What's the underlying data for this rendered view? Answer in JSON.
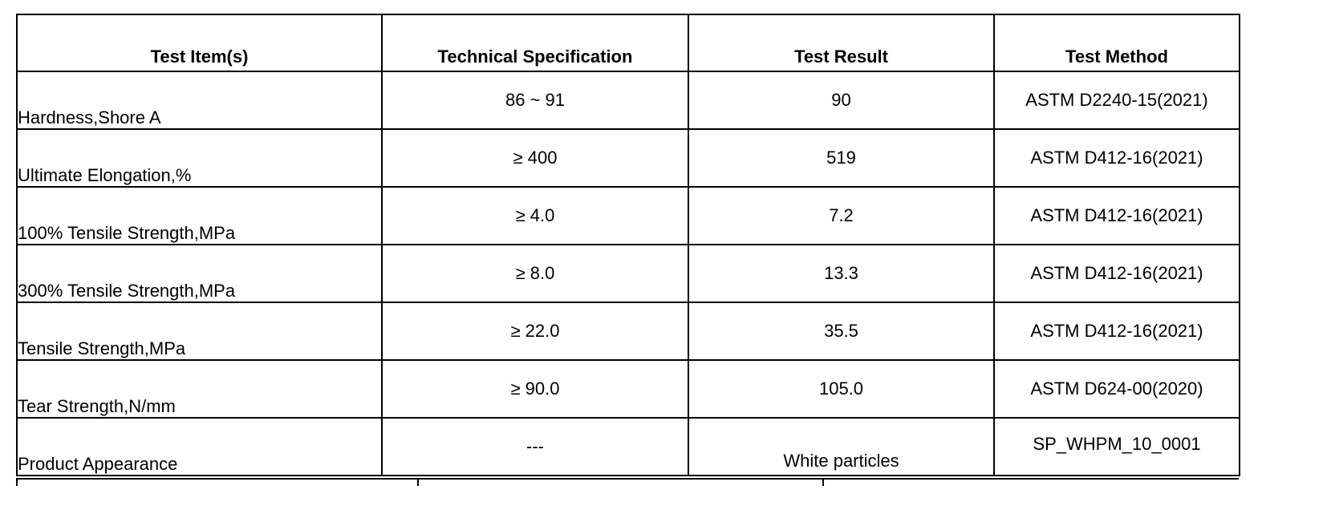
{
  "table": {
    "headers": [
      "Test Item(s)",
      "Technical Specification",
      "Test Result",
      "Test Method"
    ],
    "rows": [
      {
        "item": "Hardness,Shore A",
        "spec": "86 ~ 91",
        "result": "90",
        "method": "ASTM D2240-15(2021)"
      },
      {
        "item": "Ultimate Elongation,%",
        "spec": "≥ 400",
        "result": "519",
        "method": "ASTM D412-16(2021)"
      },
      {
        "item": "100% Tensile Strength,MPa",
        "spec": "≥ 4.0",
        "result": "7.2",
        "method": "ASTM D412-16(2021)"
      },
      {
        "item": "300% Tensile Strength,MPa",
        "spec": "≥ 8.0",
        "result": "13.3",
        "method": "ASTM D412-16(2021)"
      },
      {
        "item": "Tensile Strength,MPa",
        "spec": "≥ 22.0",
        "result": "35.5",
        "method": "ASTM D412-16(2021)"
      },
      {
        "item": "Tear Strength,N/mm",
        "spec": "≥ 90.0",
        "result": "105.0",
        "method": "ASTM D624-00(2020)"
      },
      {
        "item": "Product Appearance",
        "spec": "---",
        "result": "White particles",
        "method": "SP_WHPM_10_0001"
      }
    ]
  }
}
